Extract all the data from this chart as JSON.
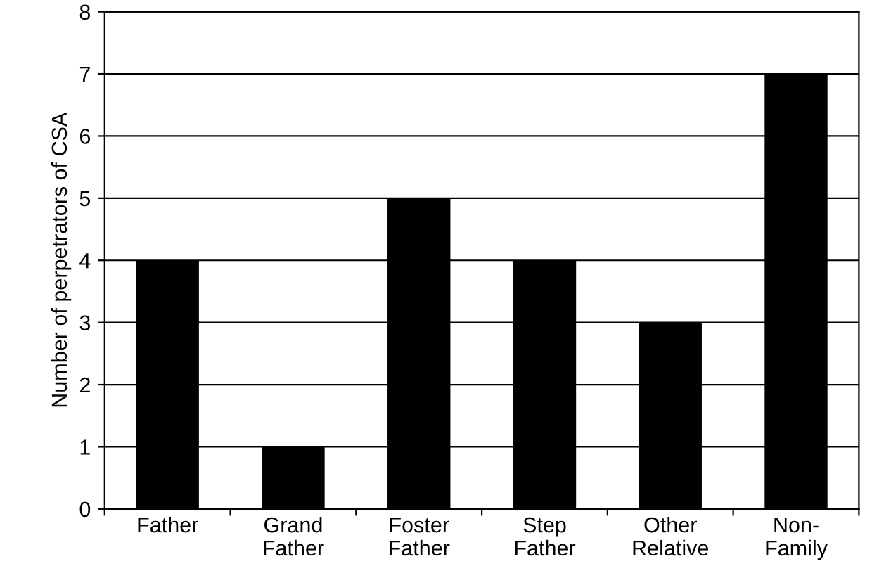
{
  "chart_data": {
    "type": "bar",
    "ylabel": "Number of perpetrators of CSA",
    "categories": [
      "Father",
      "Grand\nFather",
      "Foster\nFather",
      "Step\nFather",
      "Other\nRelative",
      "Non-\nFamily"
    ],
    "values": [
      4,
      1,
      5,
      4,
      3,
      7
    ],
    "color": "#000000",
    "ylim": [
      0,
      8
    ],
    "yticks": [
      0,
      1,
      2,
      3,
      4,
      5,
      6,
      7,
      8
    ],
    "grid": "y",
    "legend": false
  }
}
